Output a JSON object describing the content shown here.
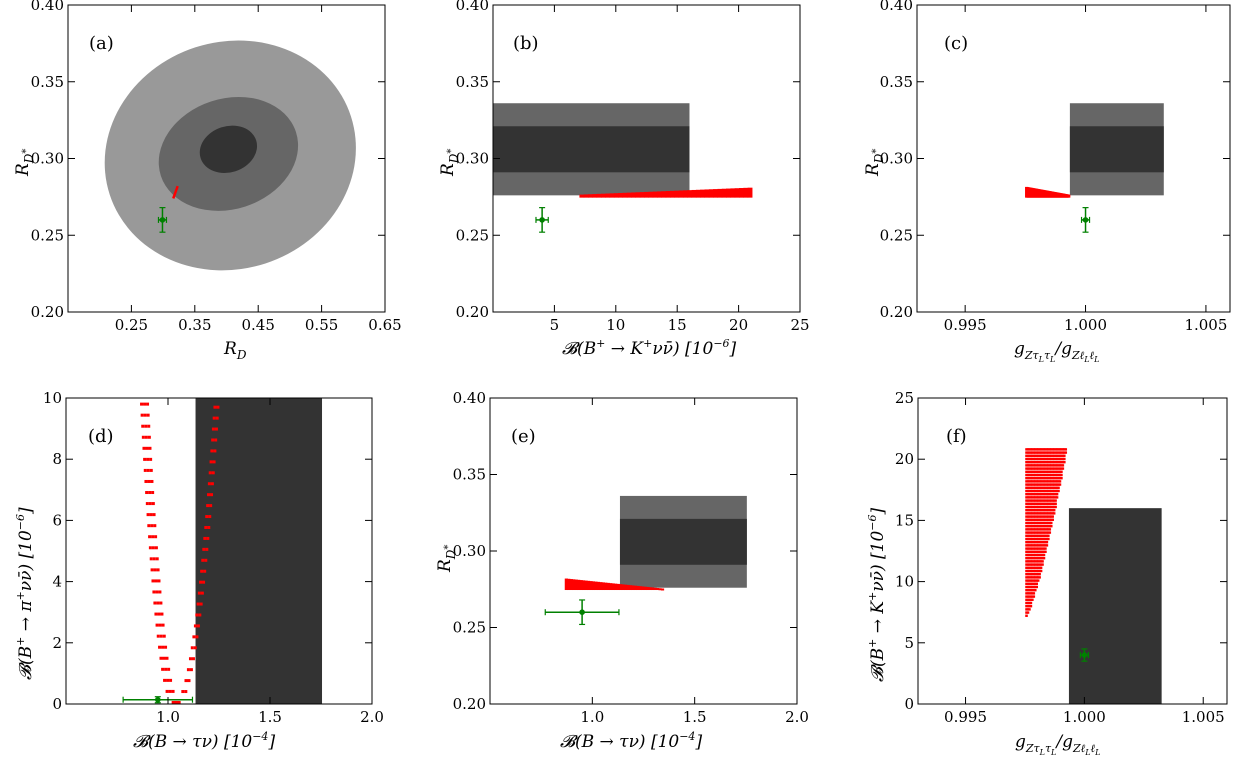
{
  "colors": {
    "band_light": "#999999",
    "band_mid": "#666666",
    "band_dark": "#333333",
    "prediction": "#ff0000",
    "sm_point": "#008000"
  },
  "chart_data": [
    {
      "panel": "(a)",
      "type": "scatter",
      "xlabel": "R_D",
      "ylabel": "R_{D*}",
      "xlim": [
        0.15,
        0.65
      ],
      "ylim": [
        0.2,
        0.4
      ],
      "xticks": [
        "0.25",
        "0.35",
        "0.45",
        "0.55",
        "0.65"
      ],
      "yticks": [
        "0.20",
        "0.25",
        "0.30",
        "0.35",
        "0.40"
      ],
      "ellipses": [
        {
          "level": "outer",
          "color": "light",
          "center": [
            0.406,
            0.302
          ],
          "rx": 0.2,
          "ry": 0.074,
          "angle_deg": -18
        },
        {
          "level": "middle",
          "color": "mid",
          "center": [
            0.403,
            0.303
          ],
          "rx": 0.112,
          "ry": 0.036,
          "angle_deg": -18
        },
        {
          "level": "inner",
          "color": "dark",
          "center": [
            0.403,
            0.306
          ],
          "rx": 0.046,
          "ry": 0.015,
          "angle_deg": -18
        }
      ],
      "prediction_segment": [
        [
          0.316,
          0.274
        ],
        [
          0.323,
          0.282
        ]
      ],
      "sm_point": {
        "x": 0.299,
        "y": 0.26,
        "xerr": 0.003,
        "yerr": 0.008
      }
    },
    {
      "panel": "(b)",
      "type": "scatter",
      "xlabel": "B(B+ → K+ ν ν̄) [10^-6]",
      "ylabel": "R_{D*}",
      "xlim": [
        0,
        25
      ],
      "ylim": [
        0.2,
        0.4
      ],
      "xticks": [
        "5",
        "10",
        "15",
        "20",
        "25"
      ],
      "yticks": [
        "0.20",
        "0.25",
        "0.30",
        "0.35",
        "0.40"
      ],
      "bands": [
        {
          "color": "mid",
          "x": [
            0,
            16
          ],
          "y": [
            0.276,
            0.336
          ]
        },
        {
          "color": "dark",
          "x": [
            0,
            16
          ],
          "y": [
            0.291,
            0.321
          ]
        }
      ],
      "prediction_region": {
        "x": [
          7.2,
          20.9
        ],
        "y_low": 0.2745,
        "y_top_start": 0.2765,
        "y_top_end": 0.281
      },
      "sm_point": {
        "x": 4.0,
        "y": 0.26,
        "xerr": 0.5,
        "yerr": 0.008
      }
    },
    {
      "panel": "(c)",
      "type": "scatter",
      "xlabel": "g_{Zτ_Lτ_L} / g_{Zℓ_Lℓ_L}",
      "ylabel": "R_{D*}",
      "xlim": [
        0.993,
        1.006
      ],
      "ylim": [
        0.2,
        0.4
      ],
      "xticks": [
        "0.995",
        "1.000",
        "1.005"
      ],
      "yticks": [
        "0.20",
        "0.25",
        "0.30",
        "0.35",
        "0.40"
      ],
      "bands": [
        {
          "color": "mid",
          "x": [
            0.99935,
            1.00325
          ],
          "y": [
            0.276,
            0.336
          ]
        },
        {
          "color": "dark",
          "x": [
            0.99935,
            1.00325
          ],
          "y": [
            0.291,
            0.321
          ]
        }
      ],
      "prediction_region": {
        "x": [
          0.99757,
          0.99932
        ],
        "y_low": 0.2745,
        "y_top_start": 0.2815,
        "y_top_end": 0.2765
      },
      "sm_point": {
        "x": 1.0,
        "y": 0.26,
        "xerr": 3e-05,
        "yerr": 0.008
      }
    },
    {
      "panel": "(d)",
      "type": "scatter",
      "xlabel": "B(B → τ ν) [10^-4]",
      "ylabel": "B(B+ → π+ ν ν̄) [10^-6]",
      "xlim": [
        0.5,
        2.0
      ],
      "ylim": [
        0,
        10
      ],
      "xticks": [
        "1.0",
        "1.5",
        "2.0"
      ],
      "yticks": [
        "0",
        "2",
        "4",
        "6",
        "8",
        "10"
      ],
      "bands": [
        {
          "color": "dark",
          "x": [
            1.135,
            1.755
          ],
          "y": [
            0,
            10
          ]
        }
      ],
      "prediction_curve": {
        "x_min": 1.04,
        "left_x": 0.885,
        "left_y": 9.8,
        "right_x": 1.235,
        "right_y": 9.7,
        "y_min": 0.05
      },
      "sm_point": {
        "x": 0.95,
        "y": 0.14,
        "xerr": 0.17,
        "yerr": 0.05
      }
    },
    {
      "panel": "(e)",
      "type": "scatter",
      "xlabel": "B(B → τ ν) [10^-4]",
      "ylabel": "R_{D*}",
      "xlim": [
        0.5,
        2.0
      ],
      "ylim": [
        0.2,
        0.4
      ],
      "xticks": [
        "1.0",
        "1.5",
        "2.0"
      ],
      "yticks": [
        "0.20",
        "0.25",
        "0.30",
        "0.35",
        "0.40"
      ],
      "bands": [
        {
          "color": "mid",
          "x": [
            1.135,
            1.755
          ],
          "y": [
            0.276,
            0.336
          ]
        },
        {
          "color": "dark",
          "x": [
            1.135,
            1.755
          ],
          "y": [
            0.291,
            0.321
          ]
        }
      ],
      "prediction_region": {
        "x": [
          0.875,
          1.345
        ],
        "y_low": 0.2745,
        "y_top_start": 0.282,
        "y_top_end": 0.2755
      },
      "sm_point": {
        "x": 0.95,
        "y": 0.26,
        "xerr": 0.18,
        "yerr": 0.008
      }
    },
    {
      "panel": "(f)",
      "type": "scatter",
      "xlabel": "g_{Zτ_Lτ_L} / g_{Zℓ_Lℓ_L}",
      "ylabel": "B(B+ → K+ ν ν̄) [10^-6]",
      "xlim": [
        0.993,
        1.006
      ],
      "ylim": [
        0,
        25
      ],
      "xticks": [
        "0.995",
        "1.000",
        "1.005"
      ],
      "yticks": [
        "0",
        "5",
        "10",
        "15",
        "20",
        "25"
      ],
      "bands": [
        {
          "color": "dark",
          "x": [
            0.99935,
            1.00325
          ],
          "y": [
            0,
            16
          ]
        }
      ],
      "prediction_region": {
        "x": [
          0.99757,
          0.99922
        ],
        "y_top": 20.9,
        "y_bottom_start": 7.3,
        "y_bottom_end": 20.4
      },
      "sm_point": {
        "x": 1.0,
        "y": 4.0,
        "xerr": 3e-05,
        "yerr": 0.5
      }
    }
  ]
}
